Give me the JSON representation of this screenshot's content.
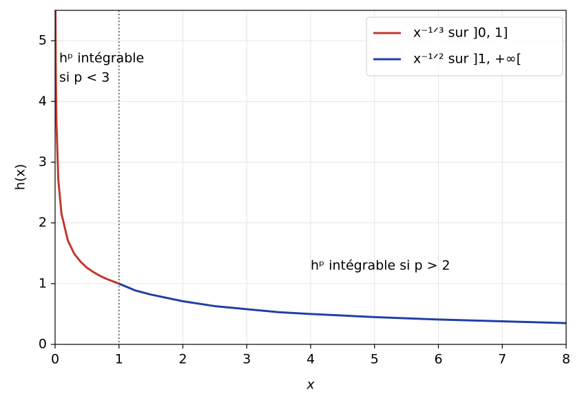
{
  "chart_data": {
    "type": "line",
    "xlabel": "x",
    "ylabel": "h(x)",
    "xlim": [
      0,
      8
    ],
    "ylim": [
      0,
      5.5
    ],
    "xticks": [
      0,
      1,
      2,
      3,
      4,
      5,
      6,
      7,
      8
    ],
    "yticks": [
      0,
      1,
      2,
      3,
      4,
      5
    ],
    "grid": true,
    "legend": "upper right",
    "vline": 1,
    "series": [
      {
        "name": "x⁻¹ᐟ³ sur ]0, 1]",
        "color": "#c0392b",
        "x": [
          0.006,
          0.01,
          0.02,
          0.05,
          0.1,
          0.2,
          0.3,
          0.4,
          0.5,
          0.6,
          0.7,
          0.8,
          0.9,
          1.0
        ],
        "values": [
          5.5,
          4.64,
          3.68,
          2.71,
          2.15,
          1.71,
          1.49,
          1.36,
          1.26,
          1.19,
          1.13,
          1.08,
          1.04,
          1.0
        ]
      },
      {
        "name": "x⁻¹ᐟ² sur ]1, +∞[",
        "color": "#1f3fa8",
        "x": [
          1,
          1.25,
          1.5,
          2,
          2.5,
          3,
          3.5,
          4,
          5,
          6,
          7,
          8
        ],
        "values": [
          1.0,
          0.89,
          0.82,
          0.71,
          0.63,
          0.58,
          0.53,
          0.5,
          0.45,
          0.41,
          0.38,
          0.35
        ]
      }
    ],
    "annotations": [
      {
        "lines": [
          "hᵖ intégrable",
          "si p < 3"
        ],
        "color": "#c0392b"
      },
      {
        "lines": [
          "hᵖ intégrable si p > 2"
        ],
        "color": "#1f3fa8"
      }
    ]
  }
}
